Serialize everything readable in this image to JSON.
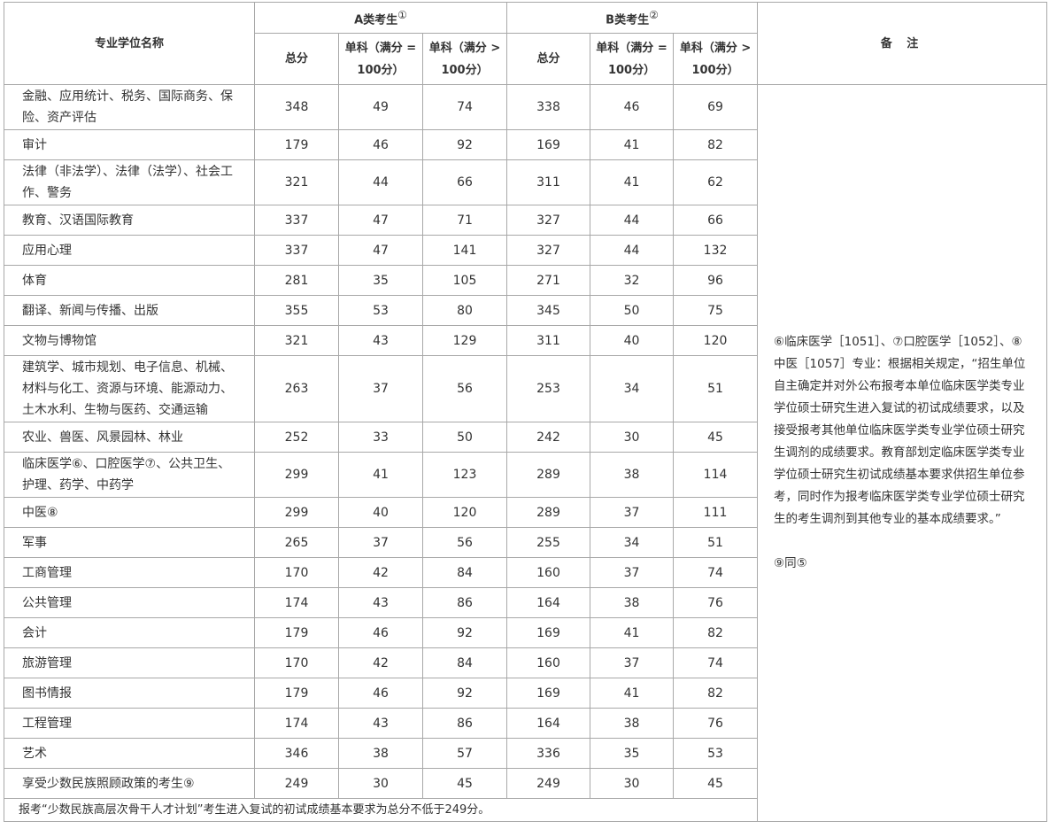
{
  "header": {
    "name_col": "专业学位名称",
    "group_a": {
      "label": "A类考生",
      "note": "①"
    },
    "group_b": {
      "label": "B类考生",
      "note": "②"
    },
    "remarks_col": "备 注",
    "sub_cols": [
      "总分",
      "单科（满分 = 100分）",
      "单科（满分 > 100分）",
      "总分",
      "单科（满分 = 100分）",
      "单科（满分 > 100分）"
    ]
  },
  "table": {
    "rows": [
      [
        "金融、应用统计、税务、国际商务、保险、资产评估",
        348,
        49,
        74,
        338,
        46,
        69
      ],
      [
        "审计",
        179,
        46,
        92,
        169,
        41,
        82
      ],
      [
        "法律（非法学）、法律（法学）、社会工作、警务",
        321,
        44,
        66,
        311,
        41,
        62
      ],
      [
        "教育、汉语国际教育",
        337,
        47,
        71,
        327,
        44,
        66
      ],
      [
        "应用心理",
        337,
        47,
        141,
        327,
        44,
        132
      ],
      [
        "体育",
        281,
        35,
        105,
        271,
        32,
        96
      ],
      [
        "翻译、新闻与传播、出版",
        355,
        53,
        80,
        345,
        50,
        75
      ],
      [
        "文物与博物馆",
        321,
        43,
        129,
        311,
        40,
        120
      ],
      [
        "建筑学、城市规划、电子信息、机械、材料与化工、资源与环境、能源动力、土木水利、生物与医药、交通运输",
        263,
        37,
        56,
        253,
        34,
        51
      ],
      [
        "农业、兽医、风景园林、林业",
        252,
        33,
        50,
        242,
        30,
        45
      ],
      [
        "临床医学⑥、口腔医学⑦、公共卫生、护理、药学、中药学",
        299,
        41,
        123,
        289,
        38,
        114
      ],
      [
        "中医⑧",
        299,
        40,
        120,
        289,
        37,
        111
      ],
      [
        "军事",
        265,
        37,
        56,
        255,
        34,
        51
      ],
      [
        "工商管理",
        170,
        42,
        84,
        160,
        37,
        74
      ],
      [
        "公共管理",
        174,
        43,
        86,
        164,
        38,
        76
      ],
      [
        "会计",
        179,
        46,
        92,
        169,
        41,
        82
      ],
      [
        "旅游管理",
        170,
        42,
        84,
        160,
        37,
        74
      ],
      [
        "图书情报",
        179,
        46,
        92,
        169,
        41,
        82
      ],
      [
        "工程管理",
        174,
        43,
        86,
        164,
        38,
        76
      ],
      [
        "艺术",
        346,
        38,
        57,
        336,
        35,
        53
      ],
      [
        "享受少数民族照顾政策的考生⑨",
        249,
        30,
        45,
        249,
        30,
        45
      ]
    ],
    "footer": "报考“少数民族高层次骨干人才计划”考生进入复试的初试成绩基本要求为总分不低于249分。",
    "remarks": [
      "⑥临床医学［1051］、⑦口腔医学［1052］、⑧中医［1057］专业：根据相关规定，“招生单位自主确定并对外公布报考本单位临床医学类专业学位硕士研究生进入复试的初试成绩要求，以及接受报考其他单位临床医学类专业学位硕士研究生调剂的成绩要求。教育部划定临床医学类专业学位硕士研究生初试成绩基本要求供招生单位参考，同时作为报考临床医学类专业学位硕士研究生的考生调剂到其他专业的基本成绩要求。”",
      "⑨同⑤"
    ]
  }
}
